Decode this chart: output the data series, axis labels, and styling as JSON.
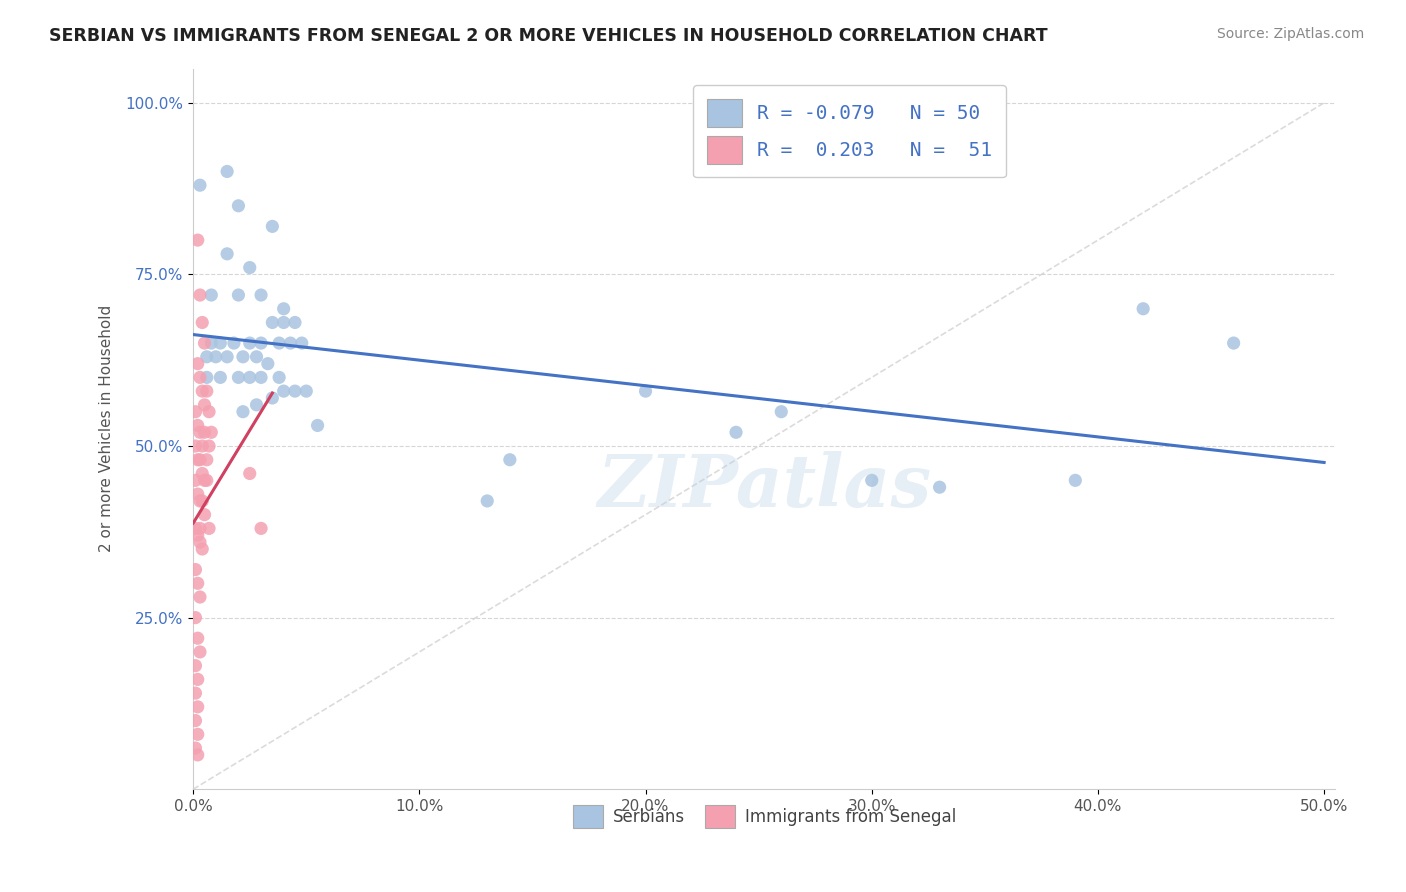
{
  "title": "SERBIAN VS IMMIGRANTS FROM SENEGAL 2 OR MORE VEHICLES IN HOUSEHOLD CORRELATION CHART",
  "source": "Source: ZipAtlas.com",
  "ylabel": "2 or more Vehicles in Household",
  "xlim": [
    0.0,
    0.505
  ],
  "ylim": [
    0.0,
    1.05
  ],
  "xtick_labels": [
    "0.0%",
    "10.0%",
    "20.0%",
    "30.0%",
    "40.0%",
    "50.0%"
  ],
  "xtick_values": [
    0.0,
    0.1,
    0.2,
    0.3,
    0.4,
    0.5
  ],
  "ytick_labels": [
    "25.0%",
    "50.0%",
    "75.0%",
    "100.0%"
  ],
  "ytick_values": [
    0.25,
    0.5,
    0.75,
    1.0
  ],
  "background_color": "#ffffff",
  "grid_color": "#cccccc",
  "watermark_text": "ZIPatlas",
  "legend_R1": "-0.079",
  "legend_N1": "50",
  "legend_R2": "0.203",
  "legend_N2": "51",
  "color_serbian": "#a8c4e0",
  "color_senegal": "#f4a0b0",
  "trendline_serbian_color": "#4472c4",
  "trendline_senegal_color": "#d04060",
  "diagonal_color": "#cccccc",
  "serbian_points": [
    [
      0.003,
      0.88
    ],
    [
      0.015,
      0.9
    ],
    [
      0.02,
      0.85
    ],
    [
      0.035,
      0.82
    ],
    [
      0.015,
      0.78
    ],
    [
      0.025,
      0.76
    ],
    [
      0.008,
      0.72
    ],
    [
      0.02,
      0.72
    ],
    [
      0.03,
      0.72
    ],
    [
      0.04,
      0.7
    ],
    [
      0.035,
      0.68
    ],
    [
      0.04,
      0.68
    ],
    [
      0.045,
      0.68
    ],
    [
      0.008,
      0.65
    ],
    [
      0.012,
      0.65
    ],
    [
      0.018,
      0.65
    ],
    [
      0.025,
      0.65
    ],
    [
      0.03,
      0.65
    ],
    [
      0.038,
      0.65
    ],
    [
      0.043,
      0.65
    ],
    [
      0.048,
      0.65
    ],
    [
      0.006,
      0.63
    ],
    [
      0.01,
      0.63
    ],
    [
      0.015,
      0.63
    ],
    [
      0.022,
      0.63
    ],
    [
      0.028,
      0.63
    ],
    [
      0.033,
      0.62
    ],
    [
      0.006,
      0.6
    ],
    [
      0.012,
      0.6
    ],
    [
      0.02,
      0.6
    ],
    [
      0.025,
      0.6
    ],
    [
      0.03,
      0.6
    ],
    [
      0.038,
      0.6
    ],
    [
      0.04,
      0.58
    ],
    [
      0.045,
      0.58
    ],
    [
      0.05,
      0.58
    ],
    [
      0.035,
      0.57
    ],
    [
      0.028,
      0.56
    ],
    [
      0.022,
      0.55
    ],
    [
      0.055,
      0.53
    ],
    [
      0.14,
      0.48
    ],
    [
      0.2,
      0.58
    ],
    [
      0.24,
      0.52
    ],
    [
      0.26,
      0.55
    ],
    [
      0.3,
      0.45
    ],
    [
      0.33,
      0.44
    ],
    [
      0.39,
      0.45
    ],
    [
      0.42,
      0.7
    ],
    [
      0.46,
      0.65
    ],
    [
      0.13,
      0.42
    ]
  ],
  "senegal_points": [
    [
      0.002,
      0.8
    ],
    [
      0.003,
      0.72
    ],
    [
      0.004,
      0.68
    ],
    [
      0.005,
      0.65
    ],
    [
      0.002,
      0.62
    ],
    [
      0.003,
      0.6
    ],
    [
      0.004,
      0.58
    ],
    [
      0.005,
      0.56
    ],
    [
      0.001,
      0.55
    ],
    [
      0.002,
      0.53
    ],
    [
      0.003,
      0.52
    ],
    [
      0.004,
      0.5
    ],
    [
      0.005,
      0.52
    ],
    [
      0.006,
      0.58
    ],
    [
      0.007,
      0.55
    ],
    [
      0.001,
      0.5
    ],
    [
      0.002,
      0.48
    ],
    [
      0.003,
      0.48
    ],
    [
      0.004,
      0.46
    ],
    [
      0.005,
      0.45
    ],
    [
      0.006,
      0.48
    ],
    [
      0.007,
      0.5
    ],
    [
      0.008,
      0.52
    ],
    [
      0.001,
      0.45
    ],
    [
      0.002,
      0.43
    ],
    [
      0.003,
      0.42
    ],
    [
      0.004,
      0.42
    ],
    [
      0.005,
      0.4
    ],
    [
      0.001,
      0.38
    ],
    [
      0.002,
      0.37
    ],
    [
      0.003,
      0.36
    ],
    [
      0.004,
      0.35
    ],
    [
      0.001,
      0.32
    ],
    [
      0.002,
      0.3
    ],
    [
      0.003,
      0.28
    ],
    [
      0.001,
      0.25
    ],
    [
      0.002,
      0.22
    ],
    [
      0.003,
      0.2
    ],
    [
      0.001,
      0.18
    ],
    [
      0.002,
      0.16
    ],
    [
      0.001,
      0.14
    ],
    [
      0.002,
      0.12
    ],
    [
      0.001,
      0.1
    ],
    [
      0.002,
      0.08
    ],
    [
      0.001,
      0.06
    ],
    [
      0.002,
      0.05
    ],
    [
      0.003,
      0.38
    ],
    [
      0.006,
      0.45
    ],
    [
      0.007,
      0.38
    ],
    [
      0.025,
      0.46
    ],
    [
      0.03,
      0.38
    ]
  ]
}
